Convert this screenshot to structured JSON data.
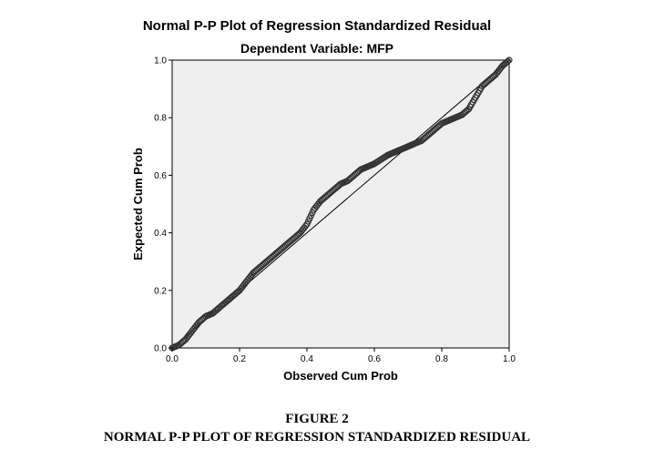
{
  "chart_data": {
    "type": "scatter",
    "title": "Normal P-P Plot of Regression Standardized Residual",
    "subtitle": "Dependent Variable: MFP",
    "xlabel": "Observed Cum Prob",
    "ylabel": "Expected Cum Prob",
    "xlim": [
      0,
      1
    ],
    "ylim": [
      0,
      1
    ],
    "xticks": [
      "0.0",
      "0.2",
      "0.4",
      "0.6",
      "0.8",
      "1.0"
    ],
    "yticks": [
      "0.0",
      "0.2",
      "0.4",
      "0.6",
      "0.8",
      "1.0"
    ],
    "reference_line": [
      [
        0,
        0
      ],
      [
        1,
        1
      ]
    ],
    "plot_background": "#efefef",
    "marker_color": "#333333",
    "grid": false,
    "legend": "none",
    "points": [
      [
        0.0,
        0.0
      ],
      [
        0.02,
        0.01
      ],
      [
        0.04,
        0.03
      ],
      [
        0.06,
        0.06
      ],
      [
        0.08,
        0.09
      ],
      [
        0.1,
        0.11
      ],
      [
        0.12,
        0.12
      ],
      [
        0.14,
        0.14
      ],
      [
        0.16,
        0.16
      ],
      [
        0.18,
        0.18
      ],
      [
        0.2,
        0.2
      ],
      [
        0.22,
        0.23
      ],
      [
        0.24,
        0.26
      ],
      [
        0.26,
        0.28
      ],
      [
        0.28,
        0.3
      ],
      [
        0.3,
        0.32
      ],
      [
        0.32,
        0.34
      ],
      [
        0.34,
        0.36
      ],
      [
        0.36,
        0.38
      ],
      [
        0.38,
        0.4
      ],
      [
        0.4,
        0.43
      ],
      [
        0.42,
        0.48
      ],
      [
        0.44,
        0.51
      ],
      [
        0.46,
        0.53
      ],
      [
        0.48,
        0.55
      ],
      [
        0.5,
        0.57
      ],
      [
        0.52,
        0.58
      ],
      [
        0.54,
        0.6
      ],
      [
        0.56,
        0.62
      ],
      [
        0.58,
        0.63
      ],
      [
        0.6,
        0.64
      ],
      [
        0.62,
        0.655
      ],
      [
        0.64,
        0.67
      ],
      [
        0.66,
        0.68
      ],
      [
        0.68,
        0.69
      ],
      [
        0.7,
        0.7
      ],
      [
        0.72,
        0.71
      ],
      [
        0.74,
        0.72
      ],
      [
        0.76,
        0.74
      ],
      [
        0.78,
        0.76
      ],
      [
        0.8,
        0.78
      ],
      [
        0.82,
        0.79
      ],
      [
        0.84,
        0.8
      ],
      [
        0.86,
        0.81
      ],
      [
        0.88,
        0.83
      ],
      [
        0.9,
        0.87
      ],
      [
        0.92,
        0.91
      ],
      [
        0.94,
        0.93
      ],
      [
        0.96,
        0.95
      ],
      [
        0.98,
        0.98
      ],
      [
        1.0,
        1.0
      ]
    ]
  },
  "caption": {
    "figure_number": "FIGURE 2",
    "text": "NORMAL P-P PLOT OF REGRESSION STANDARDIZED RESIDUAL"
  }
}
